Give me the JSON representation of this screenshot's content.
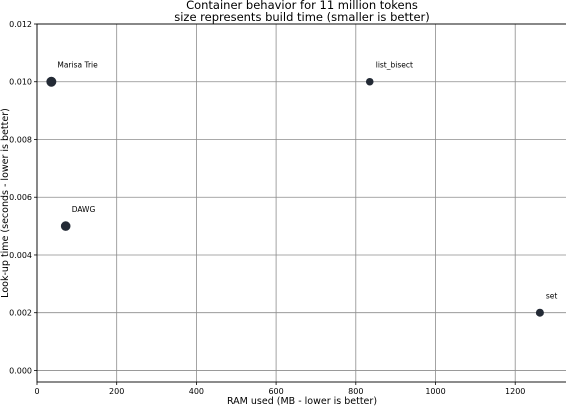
{
  "chart_data": {
    "type": "scatter",
    "title": "Container behavior for 11 million tokens",
    "subtitle": "size represents build time (smaller is better)",
    "xlabel": "RAM used (MB - lower is better)",
    "ylabel": "Look-up time (seconds - lower is better)",
    "xlim": [
      0,
      1330
    ],
    "ylim": [
      -0.0004,
      0.012
    ],
    "xticks": [
      0,
      200,
      400,
      600,
      800,
      1000,
      1200
    ],
    "xtick_labels": [
      "0",
      "200",
      "400",
      "600",
      "800",
      "1000",
      "1200"
    ],
    "yticks": [
      0.0,
      0.002,
      0.004,
      0.006,
      0.008,
      0.01,
      0.012
    ],
    "ytick_labels": [
      "0.000",
      "0.002",
      "0.004",
      "0.006",
      "0.008",
      "0.010",
      "0.012"
    ],
    "grid": true,
    "point_color": "#232a35",
    "points": [
      {
        "label": "Marisa Trie",
        "x": 36,
        "y": 0.01,
        "size": 5.0
      },
      {
        "label": "list_bisect",
        "x": 835,
        "y": 0.01,
        "size": 3.8
      },
      {
        "label": "DAWG",
        "x": 72,
        "y": 0.005,
        "size": 4.8
      },
      {
        "label": "set",
        "x": 1262,
        "y": 0.002,
        "size": 4.0
      }
    ]
  }
}
